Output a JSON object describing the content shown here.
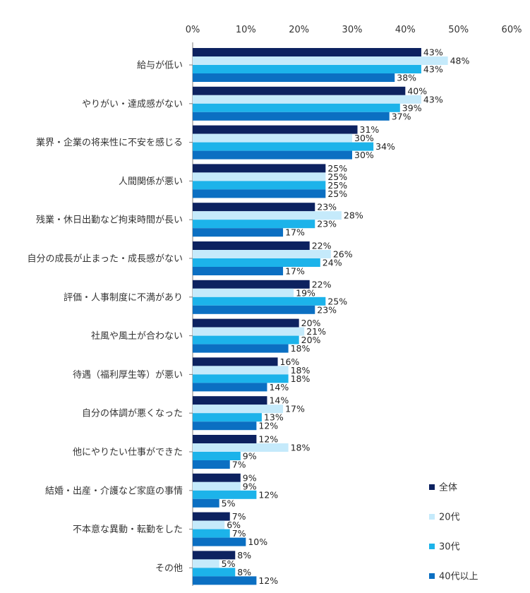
{
  "chart_data": {
    "type": "bar",
    "orientation": "horizontal",
    "title": "",
    "xlabel": "",
    "ylabel": "",
    "xlim": [
      0,
      60
    ],
    "x_ticks": [
      "0%",
      "10%",
      "20%",
      "30%",
      "40%",
      "50%",
      "60%"
    ],
    "x_tick_values": [
      0,
      10,
      20,
      30,
      40,
      50,
      60
    ],
    "grid": false,
    "legend_position": "bottom-right",
    "categories": [
      "給与が低い",
      "やりがい・達成感がない",
      "業界・企業の将来性に不安を感じる",
      "人間関係が悪い",
      "残業・休日出勤など拘束時間が長い",
      "自分の成長が止まった・成長感がない",
      "評価・人事制度に不満があり",
      "社風や風土が合わない",
      "待遇（福利厚生等）が悪い",
      "自分の体調が悪くなった",
      "他にやりたい仕事ができた",
      "結婚・出産・介護など家庭の事情",
      "不本意な異動・転勤をした",
      "その他"
    ],
    "series": [
      {
        "name": "全体",
        "color": "#0d2260",
        "values": [
          43,
          40,
          31,
          25,
          23,
          22,
          22,
          20,
          16,
          14,
          12,
          9,
          7,
          8
        ]
      },
      {
        "name": "20代",
        "color": "#c5eafb",
        "values": [
          48,
          43,
          30,
          25,
          28,
          26,
          19,
          21,
          18,
          17,
          18,
          9,
          6,
          5
        ]
      },
      {
        "name": "30代",
        "color": "#1cb3ea",
        "values": [
          43,
          39,
          34,
          25,
          23,
          24,
          25,
          20,
          18,
          13,
          9,
          12,
          7,
          8
        ]
      },
      {
        "name": "40代以上",
        "color": "#0b6fc2",
        "values": [
          38,
          37,
          30,
          25,
          17,
          17,
          23,
          18,
          14,
          12,
          7,
          5,
          10,
          12
        ]
      }
    ],
    "value_suffix": "%"
  }
}
